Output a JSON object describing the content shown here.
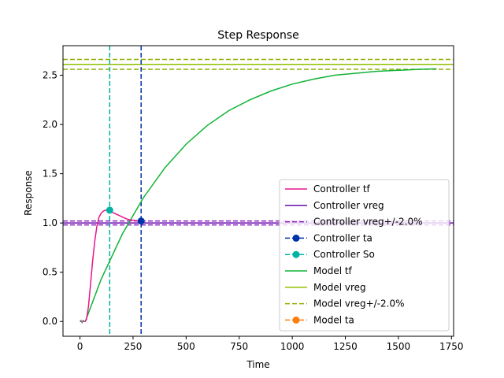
{
  "chart_data": {
    "type": "line",
    "title": "Step Response",
    "xlabel": "Time",
    "ylabel": "Response",
    "xlim": [
      -80,
      1760
    ],
    "ylim": [
      -0.15,
      2.8
    ],
    "xticks": [
      0,
      250,
      500,
      750,
      1000,
      1250,
      1500,
      1750
    ],
    "yticks": [
      0.0,
      0.5,
      1.0,
      1.5,
      2.0,
      2.5
    ],
    "xtick_labels": [
      "0",
      "250",
      "500",
      "750",
      "1000",
      "1250",
      "1500",
      "1750"
    ],
    "ytick_labels": [
      "0.0",
      "0.5",
      "1.0",
      "1.5",
      "2.0",
      "2.5"
    ],
    "grid": false,
    "legend_position": "lower-right",
    "colors": {
      "controller_tf": "#e8158c",
      "controller_vreg": "#6a0dad",
      "controller_band": "#8a1fc0",
      "controller_ta": "#0033aa",
      "controller_so": "#00b3a4",
      "model_tf": "#11b336",
      "model_vreg": "#8fbf00",
      "model_band": "#8fb000",
      "model_ta": "#ff7f0e",
      "input": "#777777"
    },
    "series": [
      {
        "name": "Controller  tf",
        "x": [
          0,
          10,
          20,
          25,
          30,
          40,
          50,
          60,
          70,
          80,
          90,
          100,
          110,
          120,
          130,
          140,
          160,
          180,
          200,
          220,
          240,
          260,
          280,
          290
        ],
        "y": [
          0,
          0,
          0,
          0,
          0.02,
          0.15,
          0.38,
          0.62,
          0.82,
          0.97,
          1.06,
          1.1,
          1.12,
          1.13,
          1.13,
          1.12,
          1.1,
          1.08,
          1.06,
          1.04,
          1.03,
          1.025,
          1.02,
          1.02
        ]
      },
      {
        "name": "Controller  vreg",
        "y": 1.0
      },
      {
        "name": "Controller  vreg+/-2.0%",
        "y": [
          0.98,
          1.02
        ]
      },
      {
        "name": "Controller  ta",
        "x": 288,
        "y": 1.02
      },
      {
        "name": "Controller  So",
        "x": 140,
        "y": 1.13
      },
      {
        "name": "Model  tf",
        "x": [
          25,
          100,
          200,
          300,
          400,
          500,
          600,
          700,
          800,
          900,
          1000,
          1100,
          1200,
          1300,
          1400,
          1500,
          1600,
          1680
        ],
        "y": [
          0.0,
          0.43,
          0.89,
          1.26,
          1.56,
          1.8,
          1.99,
          2.14,
          2.25,
          2.34,
          2.41,
          2.46,
          2.5,
          2.52,
          2.54,
          2.55,
          2.56,
          2.565
        ]
      },
      {
        "name": "Model  vreg",
        "y": 2.61
      },
      {
        "name": "Model  vreg+/-2.0%",
        "y": [
          2.56,
          2.66
        ]
      },
      {
        "name": "Model  ta"
      }
    ],
    "input_trace": {
      "x": [
        0,
        5,
        10,
        15,
        20,
        25
      ],
      "y": [
        0.0,
        0.01,
        -0.01,
        0.01,
        0.0,
        0.0
      ]
    }
  }
}
